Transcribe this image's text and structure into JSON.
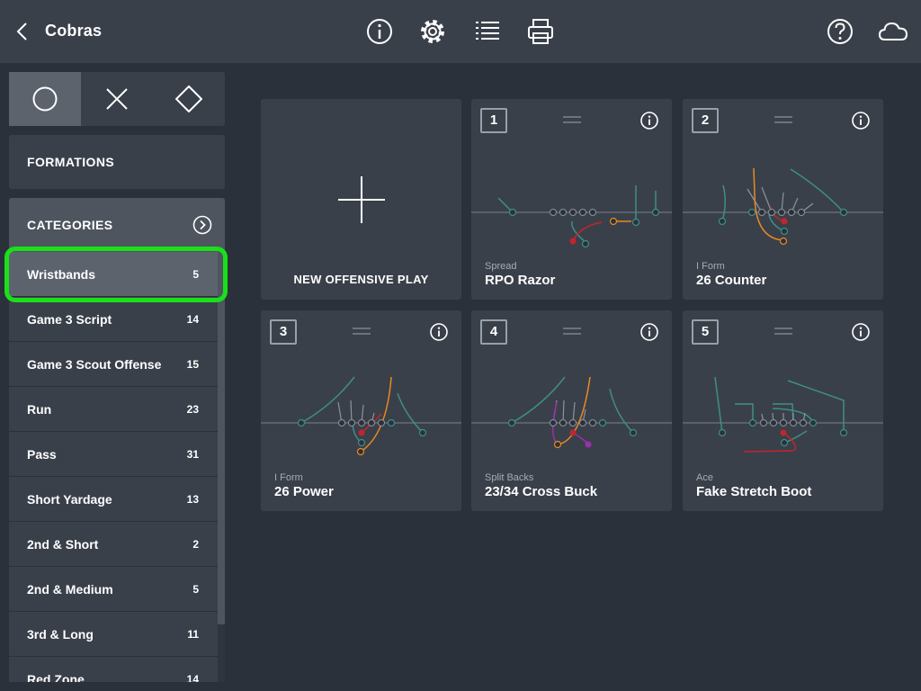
{
  "header": {
    "title": "Cobras",
    "icons": [
      "back-icon",
      "info-icon",
      "settings-icon",
      "list-icon",
      "print-icon",
      "help-icon",
      "cloud-icon"
    ]
  },
  "sidebar": {
    "shapes": [
      "circle-icon",
      "x-icon",
      "diamond-icon"
    ],
    "formations_label": "FORMATIONS",
    "categories_label": "CATEGORIES",
    "categories": [
      {
        "name": "Wristbands",
        "count": "5"
      },
      {
        "name": "Game 3 Script",
        "count": "14"
      },
      {
        "name": "Game 3 Scout Offense",
        "count": "15"
      },
      {
        "name": "Run",
        "count": "23"
      },
      {
        "name": "Pass",
        "count": "31"
      },
      {
        "name": "Short Yardage",
        "count": "13"
      },
      {
        "name": "2nd & Short",
        "count": "2"
      },
      {
        "name": "2nd & Medium",
        "count": "5"
      },
      {
        "name": "3rd & Long",
        "count": "11"
      },
      {
        "name": "Red Zone",
        "count": "14"
      }
    ]
  },
  "main": {
    "new_play_label": "NEW OFFENSIVE PLAY",
    "plays": [
      {
        "number": "1",
        "formation": "Spread",
        "name": "RPO Razor"
      },
      {
        "number": "2",
        "formation": "I Form",
        "name": "26 Counter"
      },
      {
        "number": "3",
        "formation": "I Form",
        "name": "26 Power"
      },
      {
        "number": "4",
        "formation": "Split Backs",
        "name": "23/34 Cross Buck"
      },
      {
        "number": "5",
        "formation": "Ace",
        "name": "Fake Stretch Boot"
      }
    ]
  },
  "colors": {
    "background": "#2b313b",
    "panel": "#3a404a",
    "selected": "#5c636d",
    "highlight": "#19e019",
    "route_teal": "#3d8f86",
    "route_orange": "#e88a23",
    "route_red": "#c0262d",
    "route_purple": "#9b2fae"
  }
}
